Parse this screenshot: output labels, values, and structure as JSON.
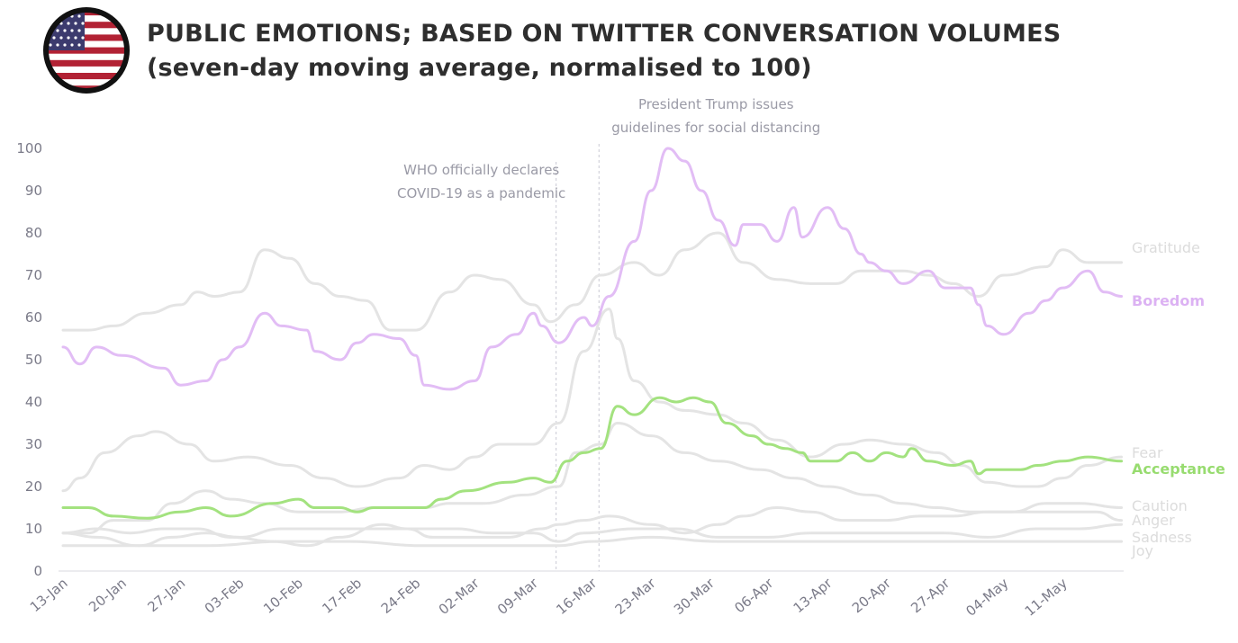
{
  "chart_data": {
    "type": "line",
    "title": "PUBLIC EMOTIONS; BASED ON TWITTER CONVERSATION VOLUMES",
    "subtitle": "(seven-day moving average, normalised to 100)",
    "xlabel": "",
    "ylabel": "",
    "x_unit": "days since 13-Jan",
    "x_range": [
      0,
      126
    ],
    "ylim": [
      0,
      100
    ],
    "yticks": [
      "0",
      "10",
      "20",
      "30",
      "40",
      "50",
      "60",
      "70",
      "80",
      "90",
      "100"
    ],
    "xticks": [
      {
        "day": 0,
        "label": "13-Jan"
      },
      {
        "day": 7,
        "label": "20-Jan"
      },
      {
        "day": 14,
        "label": "27-Jan"
      },
      {
        "day": 21,
        "label": "03-Feb"
      },
      {
        "day": 28,
        "label": "10-Feb"
      },
      {
        "day": 35,
        "label": "17-Feb"
      },
      {
        "day": 42,
        "label": "24-Feb"
      },
      {
        "day": 49,
        "label": "02-Mar"
      },
      {
        "day": 56,
        "label": "09-Mar"
      },
      {
        "day": 63,
        "label": "16-Mar"
      },
      {
        "day": 70,
        "label": "23-Mar"
      },
      {
        "day": 77,
        "label": "30-Mar"
      },
      {
        "day": 84,
        "label": "06-Apr"
      },
      {
        "day": 91,
        "label": "13-Apr"
      },
      {
        "day": 98,
        "label": "20-Apr"
      },
      {
        "day": 105,
        "label": "27-Apr"
      },
      {
        "day": 112,
        "label": "04-May"
      },
      {
        "day": 119,
        "label": "11-May"
      }
    ],
    "grid": false,
    "legend": "inline-right",
    "annotations": [
      {
        "day": 58.7,
        "lines": [
          "WHO officially declares",
          "COVID-19 as a pandemic"
        ]
      },
      {
        "day": 63.8,
        "lines": [
          "President Trump issues",
          "guidelines for social distancing"
        ]
      }
    ],
    "series": [
      {
        "name": "Gratitude",
        "color": "#e4e4e4",
        "label_color": "#dcdcdc",
        "points": [
          [
            0,
            57
          ],
          [
            3,
            57
          ],
          [
            6,
            58
          ],
          [
            10,
            61
          ],
          [
            14,
            63
          ],
          [
            16,
            66
          ],
          [
            18,
            65
          ],
          [
            21,
            66
          ],
          [
            24,
            76
          ],
          [
            27,
            74
          ],
          [
            30,
            68
          ],
          [
            33,
            65
          ],
          [
            36,
            64
          ],
          [
            39,
            57
          ],
          [
            42,
            57
          ],
          [
            46,
            66
          ],
          [
            49,
            70
          ],
          [
            52,
            69
          ],
          [
            56,
            63
          ],
          [
            58,
            59
          ],
          [
            61,
            63
          ],
          [
            64,
            70
          ],
          [
            68,
            73
          ],
          [
            71,
            70
          ],
          [
            74,
            76
          ],
          [
            78,
            80
          ],
          [
            81,
            73
          ],
          [
            85,
            69
          ],
          [
            89,
            68
          ],
          [
            92,
            68
          ],
          [
            95,
            71
          ],
          [
            100,
            71
          ],
          [
            103,
            70
          ],
          [
            106,
            68
          ],
          [
            109,
            65
          ],
          [
            112,
            70
          ],
          [
            117,
            72
          ],
          [
            119,
            76
          ],
          [
            122,
            73
          ],
          [
            126,
            73
          ]
        ]
      },
      {
        "name": "Boredom",
        "color": "#e2bdf5",
        "label_color": "#dcb2f3",
        "points": [
          [
            0,
            53
          ],
          [
            2,
            49
          ],
          [
            4,
            53
          ],
          [
            7,
            51
          ],
          [
            12,
            48
          ],
          [
            14,
            44
          ],
          [
            17,
            45
          ],
          [
            19,
            50
          ],
          [
            21,
            53
          ],
          [
            24,
            61
          ],
          [
            26,
            58
          ],
          [
            29,
            57
          ],
          [
            30,
            52
          ],
          [
            33,
            50
          ],
          [
            35,
            54
          ],
          [
            37,
            56
          ],
          [
            40,
            55
          ],
          [
            42,
            51
          ],
          [
            43,
            44
          ],
          [
            46,
            43
          ],
          [
            49,
            45
          ],
          [
            51,
            53
          ],
          [
            54,
            56
          ],
          [
            56,
            61
          ],
          [
            57,
            58
          ],
          [
            59,
            54
          ],
          [
            62,
            60
          ],
          [
            63,
            58
          ],
          [
            65,
            65
          ],
          [
            68,
            78
          ],
          [
            70,
            90
          ],
          [
            72,
            100
          ],
          [
            74,
            97
          ],
          [
            76,
            90
          ],
          [
            78,
            83
          ],
          [
            80,
            77
          ],
          [
            81,
            82
          ],
          [
            83,
            82
          ],
          [
            85,
            78
          ],
          [
            87,
            86
          ],
          [
            88,
            79
          ],
          [
            91,
            86
          ],
          [
            93,
            81
          ],
          [
            95,
            75
          ],
          [
            96,
            73
          ],
          [
            98,
            71
          ],
          [
            100,
            68
          ],
          [
            103,
            71
          ],
          [
            105,
            67
          ],
          [
            108,
            67
          ],
          [
            109,
            63
          ],
          [
            110,
            58
          ],
          [
            112,
            56
          ],
          [
            115,
            61
          ],
          [
            117,
            64
          ],
          [
            119,
            67
          ],
          [
            122,
            71
          ],
          [
            124,
            66
          ],
          [
            126,
            65
          ]
        ]
      },
      {
        "name": "Fear",
        "color": "#e4e4e4",
        "label_color": "#dcdcdc",
        "points": [
          [
            0,
            19
          ],
          [
            2,
            22
          ],
          [
            5,
            28
          ],
          [
            9,
            32
          ],
          [
            11,
            33
          ],
          [
            15,
            30
          ],
          [
            18,
            26
          ],
          [
            22,
            27
          ],
          [
            27,
            25
          ],
          [
            31,
            22
          ],
          [
            35,
            20
          ],
          [
            40,
            22
          ],
          [
            43,
            25
          ],
          [
            46,
            24
          ],
          [
            49,
            27
          ],
          [
            52,
            30
          ],
          [
            56,
            30
          ],
          [
            59,
            35
          ],
          [
            62,
            52
          ],
          [
            65,
            62
          ],
          [
            66,
            55
          ],
          [
            68,
            45
          ],
          [
            71,
            40
          ],
          [
            74,
            38
          ],
          [
            78,
            37
          ],
          [
            81,
            35
          ],
          [
            85,
            31
          ],
          [
            89,
            27
          ],
          [
            93,
            30
          ],
          [
            96,
            31
          ],
          [
            100,
            30
          ],
          [
            104,
            28
          ],
          [
            107,
            25
          ],
          [
            110,
            21
          ],
          [
            114,
            20
          ],
          [
            116,
            20
          ],
          [
            119,
            22
          ],
          [
            122,
            25
          ],
          [
            126,
            27
          ]
        ]
      },
      {
        "name": "Acceptance",
        "color": "#a3e27f",
        "label_color": "#98dc70",
        "points": [
          [
            0,
            15
          ],
          [
            3,
            15
          ],
          [
            6,
            13
          ],
          [
            10,
            12.5
          ],
          [
            14,
            14
          ],
          [
            17,
            15
          ],
          [
            20,
            13
          ],
          [
            25,
            16
          ],
          [
            28,
            17
          ],
          [
            30,
            15
          ],
          [
            33,
            15
          ],
          [
            35,
            14
          ],
          [
            37,
            15
          ],
          [
            43,
            15
          ],
          [
            45,
            17
          ],
          [
            48,
            19
          ],
          [
            53,
            21
          ],
          [
            56,
            22
          ],
          [
            58,
            21
          ],
          [
            60,
            26
          ],
          [
            62,
            28
          ],
          [
            64,
            29
          ],
          [
            66,
            39
          ],
          [
            68,
            37
          ],
          [
            71,
            41
          ],
          [
            73,
            40
          ],
          [
            75,
            41
          ],
          [
            77,
            40
          ],
          [
            79,
            35
          ],
          [
            82,
            32
          ],
          [
            84,
            30
          ],
          [
            86,
            29
          ],
          [
            88,
            28
          ],
          [
            89,
            26
          ],
          [
            92,
            26
          ],
          [
            94,
            28
          ],
          [
            96,
            26
          ],
          [
            98,
            28
          ],
          [
            100,
            27
          ],
          [
            101,
            29
          ],
          [
            103,
            26
          ],
          [
            106,
            25
          ],
          [
            108,
            26
          ],
          [
            109,
            23
          ],
          [
            110,
            24
          ],
          [
            114,
            24
          ],
          [
            116,
            25
          ],
          [
            119,
            26
          ],
          [
            122,
            27
          ],
          [
            126,
            26
          ]
        ]
      },
      {
        "name": "Caution",
        "color": "#e4e4e4",
        "label_color": "#dcdcdc",
        "points": [
          [
            0,
            9
          ],
          [
            3,
            9
          ],
          [
            6,
            12
          ],
          [
            10,
            12
          ],
          [
            13,
            16
          ],
          [
            17,
            19
          ],
          [
            20,
            17
          ],
          [
            24,
            16
          ],
          [
            28,
            14
          ],
          [
            33,
            14
          ],
          [
            37,
            15
          ],
          [
            43,
            15
          ],
          [
            46,
            16
          ],
          [
            50,
            16
          ],
          [
            55,
            18
          ],
          [
            59,
            20
          ],
          [
            61,
            28
          ],
          [
            64,
            30
          ],
          [
            66,
            35
          ],
          [
            70,
            32
          ],
          [
            74,
            28
          ],
          [
            78,
            26
          ],
          [
            83,
            24
          ],
          [
            87,
            22
          ],
          [
            91,
            20
          ],
          [
            96,
            18
          ],
          [
            100,
            16
          ],
          [
            104,
            15
          ],
          [
            108,
            14
          ],
          [
            113,
            14
          ],
          [
            117,
            16
          ],
          [
            121,
            16
          ],
          [
            126,
            15
          ]
        ]
      },
      {
        "name": "Anger",
        "color": "#e4e4e4",
        "label_color": "#dcdcdc",
        "points": [
          [
            0,
            9
          ],
          [
            4,
            10
          ],
          [
            8,
            9
          ],
          [
            12,
            10
          ],
          [
            16,
            10
          ],
          [
            20,
            8
          ],
          [
            25,
            7
          ],
          [
            29,
            6
          ],
          [
            33,
            8
          ],
          [
            38,
            11
          ],
          [
            41,
            10
          ],
          [
            44,
            8
          ],
          [
            48,
            8
          ],
          [
            53,
            8
          ],
          [
            57,
            10
          ],
          [
            59,
            11
          ],
          [
            62,
            12
          ],
          [
            65,
            13
          ],
          [
            70,
            11
          ],
          [
            74,
            9
          ],
          [
            78,
            11
          ],
          [
            81,
            13
          ],
          [
            85,
            15
          ],
          [
            89,
            14
          ],
          [
            93,
            12
          ],
          [
            98,
            12
          ],
          [
            102,
            13
          ],
          [
            106,
            13
          ],
          [
            110,
            14
          ],
          [
            115,
            14
          ],
          [
            119,
            14
          ],
          [
            123,
            14
          ],
          [
            126,
            12
          ]
        ]
      },
      {
        "name": "Sadness",
        "color": "#e4e4e4",
        "label_color": "#dcdcdc",
        "points": [
          [
            0,
            9
          ],
          [
            4,
            8
          ],
          [
            9,
            6
          ],
          [
            13,
            8
          ],
          [
            17,
            9
          ],
          [
            21,
            8
          ],
          [
            26,
            10
          ],
          [
            30,
            10
          ],
          [
            34,
            10
          ],
          [
            39,
            10
          ],
          [
            43,
            10
          ],
          [
            47,
            10
          ],
          [
            51,
            9
          ],
          [
            56,
            9
          ],
          [
            59,
            7
          ],
          [
            62,
            9
          ],
          [
            68,
            10
          ],
          [
            73,
            10
          ],
          [
            78,
            8
          ],
          [
            84,
            8
          ],
          [
            89,
            9
          ],
          [
            94,
            9
          ],
          [
            100,
            9
          ],
          [
            105,
            9
          ],
          [
            110,
            8
          ],
          [
            116,
            10
          ],
          [
            121,
            10
          ],
          [
            126,
            11
          ]
        ]
      },
      {
        "name": "Joy",
        "color": "#e4e4e4",
        "label_color": "#dcdcdc",
        "points": [
          [
            0,
            6
          ],
          [
            9,
            6
          ],
          [
            17,
            6
          ],
          [
            26,
            7
          ],
          [
            34,
            7
          ],
          [
            43,
            6
          ],
          [
            51,
            6
          ],
          [
            59,
            6
          ],
          [
            63,
            7
          ],
          [
            70,
            8
          ],
          [
            78,
            7
          ],
          [
            87,
            7
          ],
          [
            95,
            7
          ],
          [
            104,
            7
          ],
          [
            113,
            7
          ],
          [
            126,
            7
          ]
        ]
      }
    ]
  },
  "header": {
    "flag_icon": "us-flag-icon"
  }
}
